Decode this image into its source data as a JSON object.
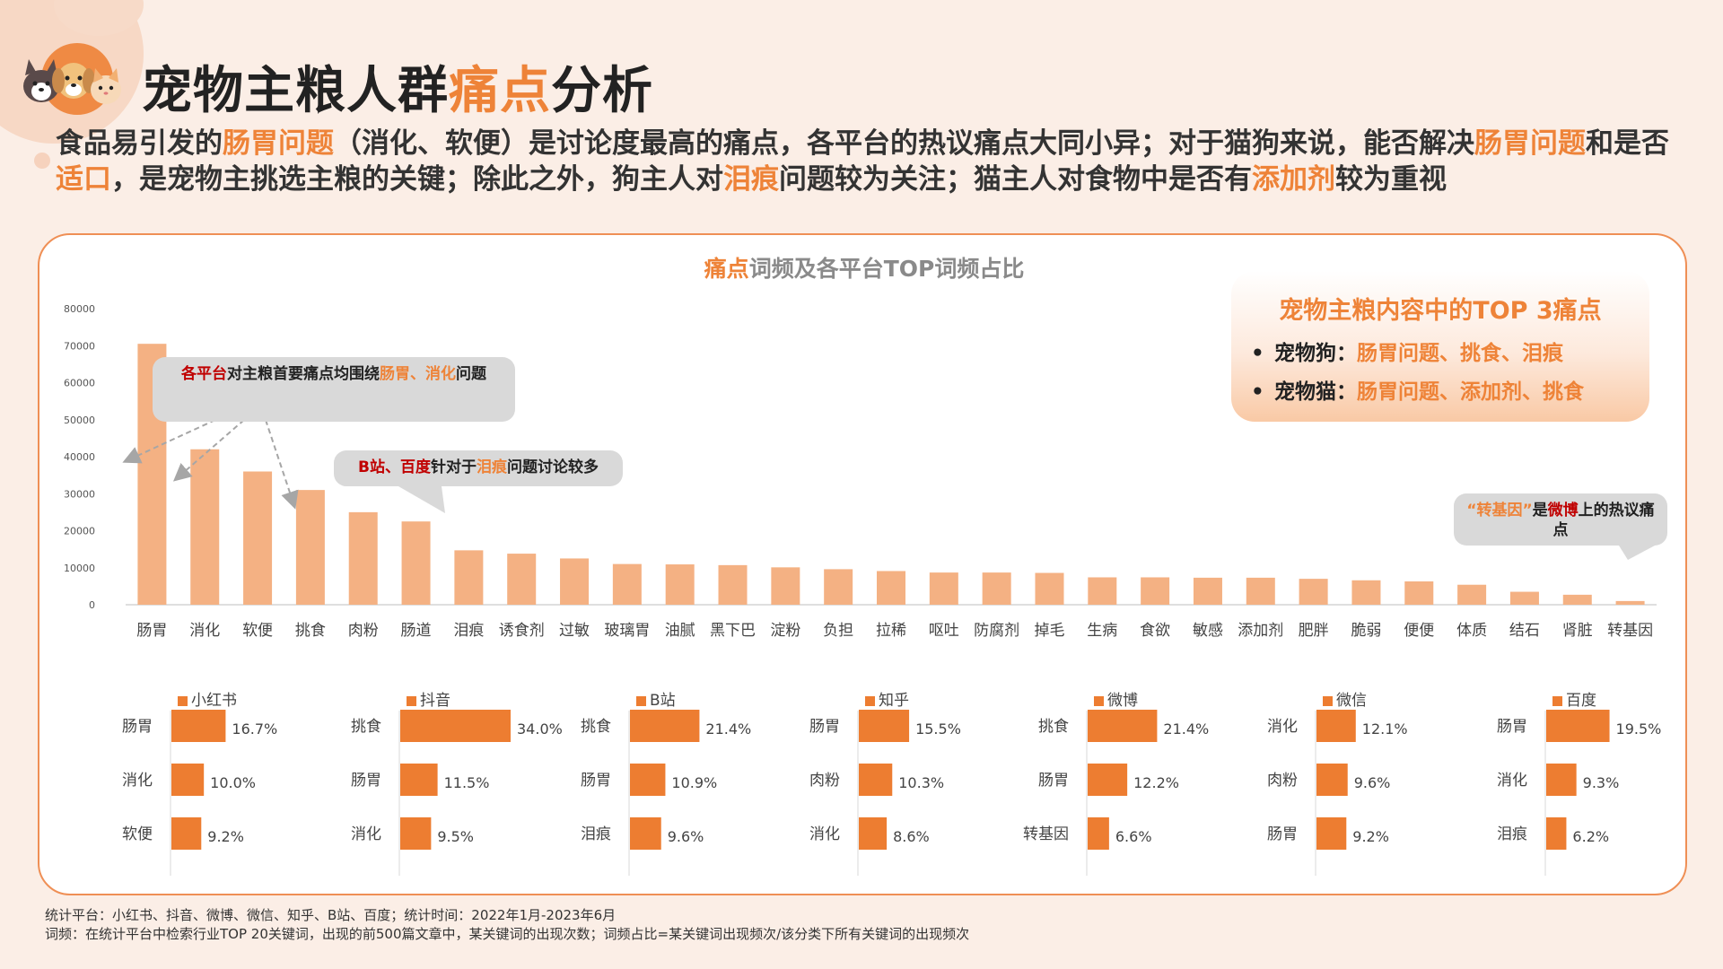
{
  "title": {
    "part1": "宠物主粮人群",
    "highlight": "痛点",
    "part2": "分析"
  },
  "summary": [
    {
      "t": "食品易引发的",
      "h": false
    },
    {
      "t": "肠胃问题",
      "h": true
    },
    {
      "t": "（消化、软便）是讨论度最高的痛点，各平台的热议痛点大同小异；对于猫狗来说，能否解决",
      "h": false
    },
    {
      "t": "肠胃问题",
      "h": true
    },
    {
      "t": "和是否",
      "h": false
    },
    {
      "t": "适口",
      "h": true
    },
    {
      "t": "，是宠物主挑选主粮的关键；除此之外，狗主人对",
      "h": false
    },
    {
      "t": "泪痕",
      "h": true
    },
    {
      "t": "问题较为关注；猫主人对食物中是否有",
      "h": false
    },
    {
      "t": "添加剂",
      "h": true
    },
    {
      "t": "较为重视",
      "h": false
    }
  ],
  "chart_title": {
    "highlight": "痛点",
    "rest": "词频及各平台TOP词频占比"
  },
  "top3": {
    "title": "宠物主粮内容中的TOP 3痛点",
    "rows": [
      {
        "bullet": "•",
        "label": "宠物狗：",
        "value": "肠胃问题、挑食、泪痕"
      },
      {
        "bullet": "•",
        "label": "宠物猫：",
        "value": "肠胃问题、添加剂、挑食"
      }
    ]
  },
  "callouts": {
    "c1": {
      "a": "各平台",
      "b": "对主粮首要痛点均围绕",
      "c": "肠胃、消化",
      "d": "问题"
    },
    "c2": {
      "a": "B站、百度",
      "b": "针对于",
      "c": "泪痕",
      "d": "问题讨论较多"
    },
    "c3": {
      "a": "“转基因”",
      "b": "是",
      "c": "微博",
      "d": "上的热议痛点"
    }
  },
  "colors": {
    "bar_main": "#f4b183",
    "bar_platform": "#ed7d31",
    "accent": "#ee8338",
    "red": "#c00000"
  },
  "chart_data": [
    {
      "type": "bar",
      "categories": [
        "肠胃",
        "消化",
        "软便",
        "挑食",
        "肉粉",
        "肠道",
        "泪痕",
        "诱食剂",
        "过敏",
        "玻璃胃",
        "油腻",
        "黑下巴",
        "淀粉",
        "负担",
        "拉稀",
        "呕吐",
        "防腐剂",
        "掉毛",
        "生病",
        "食欲",
        "敏感",
        "添加剂",
        "肥胖",
        "脆弱",
        "便便",
        "体质",
        "结石",
        "肾脏",
        "转基因"
      ],
      "values": [
        70500,
        42000,
        36000,
        31000,
        25000,
        22500,
        14700,
        13800,
        12500,
        11000,
        10900,
        10700,
        10100,
        9600,
        9100,
        8700,
        8700,
        8600,
        7400,
        7400,
        7300,
        7300,
        7000,
        6600,
        6300,
        5400,
        3500,
        2700,
        1000
      ],
      "yticks": [
        "0",
        "10000",
        "20000",
        "30000",
        "40000",
        "50000",
        "60000",
        "70000",
        "80000"
      ],
      "ylim": [
        0,
        80000
      ]
    },
    {
      "type": "bar",
      "series_name": "小红书",
      "categories": [
        "肠胃",
        "消化",
        "软便"
      ],
      "values": [
        16.7,
        10.0,
        9.2
      ],
      "labels": [
        "16.7%",
        "10.0%",
        "9.2%"
      ]
    },
    {
      "type": "bar",
      "series_name": "抖音",
      "categories": [
        "挑食",
        "肠胃",
        "消化"
      ],
      "values": [
        34.0,
        11.5,
        9.5
      ],
      "labels": [
        "34.0%",
        "11.5%",
        "9.5%"
      ]
    },
    {
      "type": "bar",
      "series_name": "B站",
      "categories": [
        "挑食",
        "肠胃",
        "泪痕"
      ],
      "values": [
        21.4,
        10.9,
        9.6
      ],
      "labels": [
        "21.4%",
        "10.9%",
        "9.6%"
      ]
    },
    {
      "type": "bar",
      "series_name": "知乎",
      "categories": [
        "肠胃",
        "肉粉",
        "消化"
      ],
      "values": [
        15.5,
        10.3,
        8.6
      ],
      "labels": [
        "15.5%",
        "10.3%",
        "8.6%"
      ]
    },
    {
      "type": "bar",
      "series_name": "微博",
      "categories": [
        "挑食",
        "肠胃",
        "转基因"
      ],
      "values": [
        21.4,
        12.2,
        6.6
      ],
      "labels": [
        "21.4%",
        "12.2%",
        "6.6%"
      ]
    },
    {
      "type": "bar",
      "series_name": "微信",
      "categories": [
        "消化",
        "肉粉",
        "肠胃"
      ],
      "values": [
        12.1,
        9.6,
        9.2
      ],
      "labels": [
        "12.1%",
        "9.6%",
        "9.2%"
      ]
    },
    {
      "type": "bar",
      "series_name": "百度",
      "categories": [
        "肠胃",
        "消化",
        "泪痕"
      ],
      "values": [
        19.5,
        9.3,
        6.2
      ],
      "labels": [
        "19.5%",
        "9.3%",
        "6.2%"
      ]
    }
  ],
  "footer": {
    "line1": "统计平台：小红书、抖音、微博、微信、知乎、B站、百度；统计时间：2022年1月-2023年6月",
    "line2": "词频：在统计平台中检索行业TOP 20关键词，出现的前500篇文章中，某关键词的出现次数；词频占比=某关键词出现频次/该分类下所有关键词的出现频次"
  }
}
